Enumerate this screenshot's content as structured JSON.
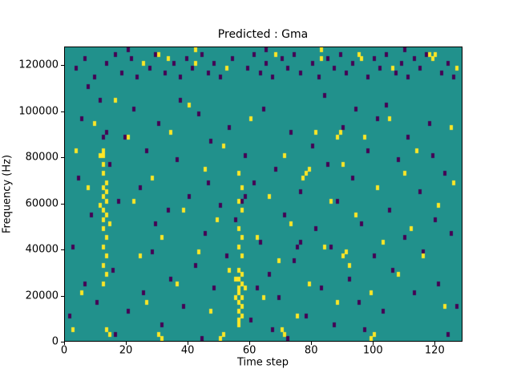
{
  "chart_data": {
    "type": "heatmap",
    "title": "Predicted : Gma",
    "xlabel": "Time step",
    "ylabel": "Frequency (Hz)",
    "xlim": [
      0,
      129
    ],
    "ylim": [
      0,
      128000
    ],
    "xticks": [
      0,
      20,
      40,
      60,
      80,
      100,
      120
    ],
    "yticks": [
      0,
      20000,
      40000,
      60000,
      80000,
      100000,
      120000
    ],
    "n_time_steps": 129,
    "n_freq_bins": 64,
    "freq_bin_hz": 2000,
    "grid": false,
    "legend": "none",
    "colors": {
      "background_mid": "#21918c",
      "low": "#440154",
      "high": "#fde725",
      "figure_bg": "#ffffff",
      "axis": "#000000"
    },
    "cells_high": [
      [
        11,
        40
      ],
      [
        12,
        41
      ],
      [
        12,
        40
      ],
      [
        12,
        38
      ],
      [
        12,
        36
      ],
      [
        13,
        34
      ],
      [
        12,
        33
      ],
      [
        13,
        32
      ],
      [
        12,
        31
      ],
      [
        13,
        30
      ],
      [
        12,
        28
      ],
      [
        13,
        27
      ],
      [
        12,
        26
      ],
      [
        12,
        24
      ],
      [
        13,
        22
      ],
      [
        12,
        20
      ],
      [
        13,
        18
      ],
      [
        12,
        16
      ],
      [
        13,
        14
      ],
      [
        12,
        12
      ],
      [
        11,
        29
      ],
      [
        14,
        25
      ],
      [
        56,
        3
      ],
      [
        56,
        4
      ],
      [
        57,
        5
      ],
      [
        56,
        6
      ],
      [
        57,
        7
      ],
      [
        56,
        8
      ],
      [
        57,
        9
      ],
      [
        56,
        10
      ],
      [
        56,
        11
      ],
      [
        57,
        12
      ],
      [
        56,
        13
      ],
      [
        57,
        14
      ],
      [
        56,
        15
      ],
      [
        57,
        18
      ],
      [
        56,
        20
      ],
      [
        57,
        22
      ],
      [
        56,
        24
      ],
      [
        57,
        28
      ],
      [
        56,
        30
      ],
      [
        57,
        33
      ],
      [
        56,
        36
      ],
      [
        55,
        9
      ],
      [
        58,
        11
      ],
      [
        55,
        13
      ],
      [
        33,
        61
      ],
      [
        42,
        60
      ],
      [
        42,
        63
      ],
      [
        52,
        59
      ],
      [
        68,
        62
      ],
      [
        83,
        61
      ],
      [
        83,
        63
      ],
      [
        95,
        62
      ],
      [
        96,
        61
      ],
      [
        106,
        59
      ],
      [
        118,
        62
      ],
      [
        119,
        61
      ],
      [
        120,
        62
      ],
      [
        127,
        59
      ],
      [
        30,
        62
      ],
      [
        25,
        60
      ],
      [
        2,
        2
      ],
      [
        5,
        10
      ],
      [
        7,
        33
      ],
      [
        3,
        41
      ],
      [
        9,
        47
      ],
      [
        16,
        52
      ],
      [
        20,
        44
      ],
      [
        22,
        30
      ],
      [
        24,
        18
      ],
      [
        26,
        8
      ],
      [
        28,
        35
      ],
      [
        31,
        22
      ],
      [
        34,
        45
      ],
      [
        36,
        12
      ],
      [
        38,
        28
      ],
      [
        40,
        51
      ],
      [
        43,
        19
      ],
      [
        45,
        37
      ],
      [
        47,
        6
      ],
      [
        49,
        26
      ],
      [
        51,
        42
      ],
      [
        53,
        15
      ],
      [
        60,
        48
      ],
      [
        62,
        22
      ],
      [
        64,
        9
      ],
      [
        66,
        31
      ],
      [
        69,
        17
      ],
      [
        71,
        40
      ],
      [
        73,
        25
      ],
      [
        75,
        5
      ],
      [
        77,
        35
      ],
      [
        79,
        12
      ],
      [
        81,
        45
      ],
      [
        84,
        20
      ],
      [
        86,
        30
      ],
      [
        88,
        8
      ],
      [
        90,
        38
      ],
      [
        92,
        16
      ],
      [
        94,
        27
      ],
      [
        97,
        44
      ],
      [
        99,
        10
      ],
      [
        101,
        33
      ],
      [
        103,
        21
      ],
      [
        105,
        48
      ],
      [
        108,
        14
      ],
      [
        110,
        36
      ],
      [
        112,
        24
      ],
      [
        114,
        41
      ],
      [
        116,
        18
      ],
      [
        121,
        29
      ],
      [
        123,
        7
      ],
      [
        125,
        46
      ],
      [
        126,
        34
      ],
      [
        88,
        44
      ],
      [
        89,
        45
      ],
      [
        90,
        18
      ],
      [
        91,
        19
      ],
      [
        78,
        36
      ],
      [
        79,
        37
      ],
      [
        13,
        2
      ],
      [
        14,
        1
      ],
      [
        30,
        1
      ],
      [
        31,
        0
      ],
      [
        50,
        0
      ],
      [
        51,
        1
      ],
      [
        70,
        2
      ],
      [
        71,
        1
      ],
      [
        99,
        0
      ],
      [
        100,
        1
      ]
    ],
    "cells_low": [
      [
        3,
        59
      ],
      [
        6,
        61
      ],
      [
        9,
        57
      ],
      [
        13,
        60
      ],
      [
        16,
        62
      ],
      [
        18,
        58
      ],
      [
        20,
        63
      ],
      [
        21,
        61
      ],
      [
        23,
        57
      ],
      [
        27,
        59
      ],
      [
        29,
        62
      ],
      [
        32,
        58
      ],
      [
        35,
        60
      ],
      [
        37,
        57
      ],
      [
        39,
        61
      ],
      [
        41,
        59
      ],
      [
        44,
        62
      ],
      [
        46,
        58
      ],
      [
        48,
        60
      ],
      [
        50,
        57
      ],
      [
        54,
        61
      ],
      [
        59,
        59
      ],
      [
        61,
        62
      ],
      [
        63,
        58
      ],
      [
        65,
        60
      ],
      [
        65,
        63
      ],
      [
        67,
        57
      ],
      [
        70,
        61
      ],
      [
        72,
        59
      ],
      [
        74,
        62
      ],
      [
        76,
        58
      ],
      [
        80,
        60
      ],
      [
        82,
        57
      ],
      [
        85,
        61
      ],
      [
        87,
        59
      ],
      [
        89,
        62
      ],
      [
        91,
        58
      ],
      [
        93,
        60
      ],
      [
        98,
        57
      ],
      [
        100,
        61
      ],
      [
        102,
        59
      ],
      [
        104,
        62
      ],
      [
        107,
        58
      ],
      [
        109,
        60
      ],
      [
        110,
        63
      ],
      [
        111,
        57
      ],
      [
        113,
        61
      ],
      [
        115,
        59
      ],
      [
        117,
        62
      ],
      [
        122,
        58
      ],
      [
        124,
        60
      ],
      [
        126,
        57
      ],
      [
        1,
        5
      ],
      [
        2,
        20
      ],
      [
        4,
        35
      ],
      [
        5,
        48
      ],
      [
        6,
        12
      ],
      [
        8,
        27
      ],
      [
        10,
        8
      ],
      [
        11,
        52
      ],
      [
        14,
        38
      ],
      [
        15,
        15
      ],
      [
        17,
        30
      ],
      [
        19,
        44
      ],
      [
        20,
        6
      ],
      [
        22,
        50
      ],
      [
        24,
        33
      ],
      [
        25,
        10
      ],
      [
        26,
        41
      ],
      [
        28,
        19
      ],
      [
        30,
        47
      ],
      [
        31,
        3
      ],
      [
        33,
        28
      ],
      [
        34,
        13
      ],
      [
        36,
        39
      ],
      [
        38,
        7
      ],
      [
        40,
        31
      ],
      [
        42,
        16
      ],
      [
        43,
        49
      ],
      [
        45,
        23
      ],
      [
        47,
        43
      ],
      [
        48,
        11
      ],
      [
        50,
        29
      ],
      [
        52,
        18
      ],
      [
        53,
        46
      ],
      [
        55,
        26
      ],
      [
        58,
        40
      ],
      [
        60,
        4
      ],
      [
        61,
        34
      ],
      [
        63,
        21
      ],
      [
        64,
        50
      ],
      [
        66,
        14
      ],
      [
        68,
        37
      ],
      [
        69,
        9
      ],
      [
        71,
        27
      ],
      [
        73,
        45
      ],
      [
        74,
        17
      ],
      [
        76,
        32
      ],
      [
        78,
        5
      ],
      [
        80,
        42
      ],
      [
        81,
        24
      ],
      [
        83,
        11
      ],
      [
        85,
        38
      ],
      [
        86,
        20
      ],
      [
        87,
        3
      ],
      [
        88,
        30
      ],
      [
        90,
        46
      ],
      [
        92,
        13
      ],
      [
        93,
        35
      ],
      [
        95,
        8
      ],
      [
        96,
        25
      ],
      [
        98,
        41
      ],
      [
        100,
        18
      ],
      [
        101,
        48
      ],
      [
        103,
        6
      ],
      [
        105,
        28
      ],
      [
        106,
        15
      ],
      [
        108,
        39
      ],
      [
        110,
        22
      ],
      [
        111,
        44
      ],
      [
        113,
        10
      ],
      [
        115,
        32
      ],
      [
        116,
        19
      ],
      [
        118,
        47
      ],
      [
        120,
        26
      ],
      [
        121,
        12
      ],
      [
        123,
        36
      ],
      [
        125,
        23
      ],
      [
        127,
        7
      ],
      [
        12,
        44
      ],
      [
        13,
        45
      ],
      [
        57,
        30
      ],
      [
        58,
        31
      ],
      [
        75,
        20
      ],
      [
        76,
        21
      ],
      [
        29,
        25
      ],
      [
        46,
        34
      ],
      [
        62,
        11
      ],
      [
        94,
        50
      ],
      [
        119,
        40
      ],
      [
        7,
        55
      ],
      [
        37,
        52
      ],
      [
        84,
        53
      ],
      [
        104,
        51
      ],
      [
        67,
        2
      ],
      [
        16,
        1
      ],
      [
        44,
        0
      ],
      [
        72,
        0
      ],
      [
        97,
        2
      ],
      [
        124,
        1
      ]
    ]
  }
}
